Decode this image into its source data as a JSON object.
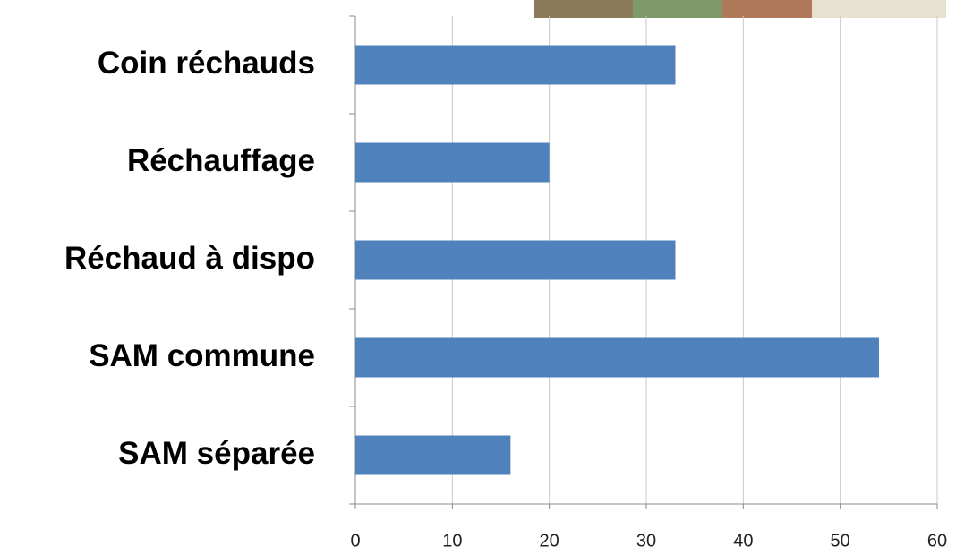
{
  "chart_data": {
    "type": "barh",
    "categories": [
      "Coin réchauds",
      "Réchauffage",
      "Réchaud à dispo",
      "SAM commune",
      "SAM séparée"
    ],
    "values": [
      33,
      20,
      33,
      54,
      16
    ],
    "color": "#4f81bd",
    "xlim": [
      0,
      60
    ],
    "xticks": [
      0,
      10,
      20,
      30,
      40,
      50,
      60
    ],
    "grid": true
  }
}
